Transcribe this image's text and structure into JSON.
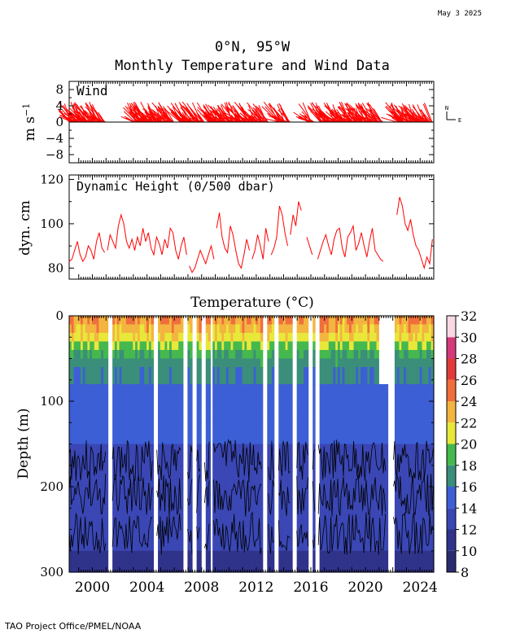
{
  "date_stamp": "May  3 2025",
  "footer": "TAO Project Office/PMEL/NOAA",
  "title_line1": "0°N, 95°W",
  "title_line2": "Monthly Temperature and Wind Data",
  "compass": {
    "north": "N",
    "east": "E"
  },
  "chart_data": [
    {
      "id": "wind",
      "type": "line",
      "label": "Wind",
      "ylabel": "m s⁻¹",
      "xlim": [
        1998.3,
        2025.0
      ],
      "ylim": [
        -10,
        10
      ],
      "yticks": [
        -8,
        -4,
        0,
        4,
        8
      ],
      "ytick_labels": [
        "−8",
        "−4",
        "0",
        "4",
        "8"
      ],
      "note": "stick vectors: northward component ~0 to +5, eastward component mostly negative (easterly trades)",
      "segments": [
        [
          1998.3,
          2001.0
        ],
        [
          2003.0,
          2006.0
        ],
        [
          2006.4,
          2008.2
        ],
        [
          2008.5,
          2012.9
        ],
        [
          2013.6,
          2014.5
        ],
        [
          2015.8,
          2016.3
        ],
        [
          2016.7,
          2021.3
        ],
        [
          2022.3,
          2024.9
        ]
      ],
      "color": "#ff0000"
    },
    {
      "id": "dynamic_height",
      "type": "line",
      "label": "Dynamic Height (0/500 dbar)",
      "ylabel": "dyn. cm",
      "xlim": [
        1998.3,
        2025.0
      ],
      "ylim": [
        75,
        122
      ],
      "yticks": [
        80,
        100,
        120
      ],
      "series": [
        {
          "x": [
            1998.3,
            1998.5,
            1998.7,
            1998.9,
            1999.1,
            1999.3,
            1999.5,
            1999.7,
            1999.9,
            2000.1,
            2000.3,
            2000.5,
            2000.7,
            2000.9
          ],
          "y": [
            83,
            84,
            88,
            92,
            86,
            83,
            85,
            90,
            88,
            84,
            92,
            96,
            89,
            87
          ]
        },
        {
          "x": [
            2001.1,
            2001.3,
            2001.5,
            2001.7,
            2001.9,
            2002.1,
            2002.3,
            2002.5,
            2002.7,
            2002.9,
            2003.1,
            2003.3,
            2003.5,
            2003.7,
            2003.9,
            2004.1,
            2004.3,
            2004.5,
            2004.7,
            2004.9,
            2005.1,
            2005.3,
            2005.5,
            2005.7,
            2005.9,
            2006.1,
            2006.3,
            2006.5,
            2006.7,
            2006.9
          ],
          "y": [
            88,
            95,
            92,
            89,
            99,
            104,
            100,
            92,
            89,
            93,
            88,
            94,
            90,
            98,
            92,
            96,
            89,
            86,
            94,
            91,
            86,
            93,
            89,
            98,
            96,
            88,
            84,
            90,
            94,
            86
          ]
        },
        {
          "x": [
            2007.1,
            2007.3,
            2007.5,
            2007.7,
            2007.9,
            2008.1,
            2008.3,
            2008.5,
            2008.7,
            2008.9
          ],
          "y": [
            81,
            78,
            80,
            84,
            88,
            85,
            82,
            86,
            90,
            84
          ]
        },
        {
          "x": [
            2009.1,
            2009.3,
            2009.5,
            2009.7,
            2009.9,
            2010.1,
            2010.3,
            2010.5,
            2010.7,
            2010.9,
            2011.1,
            2011.3,
            2011.5
          ],
          "y": [
            98,
            105,
            94,
            89,
            87,
            99,
            95,
            88,
            82,
            80,
            86,
            93,
            88
          ]
        },
        {
          "x": [
            2011.7,
            2011.9,
            2012.1,
            2012.3,
            2012.5,
            2012.7,
            2012.9
          ],
          "y": [
            84,
            88,
            95,
            90,
            84,
            98,
            92
          ]
        },
        {
          "x": [
            2013.1,
            2013.3,
            2013.5,
            2013.7,
            2013.9,
            2014.1,
            2014.3
          ],
          "y": [
            86,
            89,
            94,
            108,
            104,
            96,
            90
          ]
        },
        {
          "x": [
            2014.5,
            2014.7,
            2014.9,
            2015.1,
            2015.3
          ],
          "y": [
            95,
            104,
            99,
            110,
            106
          ]
        },
        {
          "x": [
            2015.7,
            2015.9,
            2016.1
          ],
          "y": [
            94,
            90,
            86
          ]
        },
        {
          "x": [
            2016.5,
            2016.7,
            2016.9,
            2017.1,
            2017.3,
            2017.5,
            2017.7,
            2017.9,
            2018.1,
            2018.3,
            2018.5,
            2018.7,
            2018.9,
            2019.1,
            2019.3,
            2019.5,
            2019.7,
            2019.9,
            2020.1,
            2020.3,
            2020.5,
            2020.7,
            2020.9,
            2021.1,
            2021.3
          ],
          "y": [
            84,
            88,
            92,
            95,
            90,
            86,
            93,
            97,
            98,
            89,
            85,
            94,
            96,
            99,
            88,
            91,
            96,
            90,
            85,
            92,
            98,
            88,
            86,
            84,
            83
          ]
        },
        {
          "x": [
            2022.3,
            2022.5,
            2022.7,
            2022.9,
            2023.1,
            2023.3,
            2023.5,
            2023.7,
            2023.9,
            2024.1,
            2024.3,
            2024.5,
            2024.7,
            2024.9
          ],
          "y": [
            104,
            112,
            108,
            100,
            97,
            102,
            95,
            90,
            88,
            84,
            80,
            85,
            82,
            93
          ]
        }
      ],
      "color": "#ff0000"
    },
    {
      "id": "temperature",
      "type": "heatmap",
      "title": "Temperature (°C)",
      "ylabel": "Depth (m)",
      "xlim": [
        1998.3,
        2025.0
      ],
      "ylim": [
        300,
        0
      ],
      "yticks": [
        0,
        100,
        200,
        300
      ],
      "xticks": [
        2000,
        2004,
        2008,
        2012,
        2016,
        2020,
        2024
      ],
      "colorbar": {
        "min": 8,
        "max": 32,
        "ticks": [
          8,
          10,
          12,
          14,
          16,
          18,
          20,
          22,
          24,
          26,
          28,
          30,
          32
        ],
        "bands": [
          {
            "lo": 8,
            "hi": 10,
            "color": "#2a2b6e"
          },
          {
            "lo": 10,
            "hi": 12,
            "color": "#30338a"
          },
          {
            "lo": 12,
            "hi": 14,
            "color": "#3a47b4"
          },
          {
            "lo": 14,
            "hi": 16,
            "color": "#3d5fd6"
          },
          {
            "lo": 16,
            "hi": 18,
            "color": "#3a8e7a"
          },
          {
            "lo": 18,
            "hi": 20,
            "color": "#45b84e"
          },
          {
            "lo": 20,
            "hi": 22,
            "color": "#e8e83a"
          },
          {
            "lo": 22,
            "hi": 24,
            "color": "#f3b540"
          },
          {
            "lo": 24,
            "hi": 26,
            "color": "#f06e3c"
          },
          {
            "lo": 26,
            "hi": 28,
            "color": "#e23a3a"
          },
          {
            "lo": 28,
            "hi": 30,
            "color": "#d23a7a"
          },
          {
            "lo": 30,
            "hi": 32,
            "color": "#fad8e2"
          }
        ]
      },
      "data_gaps": [
        [
          2001.0,
          2001.4
        ],
        [
          2004.4,
          2004.7
        ],
        [
          2006.5,
          2006.9
        ],
        [
          2007.3,
          2007.6
        ],
        [
          2007.9,
          2008.2
        ],
        [
          2008.6,
          2008.8
        ],
        [
          2012.4,
          2012.8
        ],
        [
          2013.3,
          2013.6
        ],
        [
          2014.5,
          2014.9
        ],
        [
          2015.8,
          2016.1
        ],
        [
          2016.3,
          2016.5
        ],
        [
          2021.5,
          2022.0
        ]
      ],
      "profile": [
        {
          "depth": 0,
          "temp": 24.0
        },
        {
          "depth": 20,
          "temp": 22.0
        },
        {
          "depth": 40,
          "temp": 18.5
        },
        {
          "depth": 60,
          "temp": 16.5
        },
        {
          "depth": 100,
          "temp": 15.0
        },
        {
          "depth": 150,
          "temp": 14.0
        },
        {
          "depth": 200,
          "temp": 13.2
        },
        {
          "depth": 250,
          "temp": 12.5
        },
        {
          "depth": 300,
          "temp": 11.8
        }
      ],
      "color_cycle": [
        "#2a2b6e",
        "#30338a",
        "#3a47b4",
        "#3d5fd6",
        "#3a8e7a",
        "#45b84e",
        "#e8e83a",
        "#f3b540",
        "#f06e3c",
        "#e23a3a",
        "#d23a7a",
        "#fad8e2"
      ]
    }
  ]
}
